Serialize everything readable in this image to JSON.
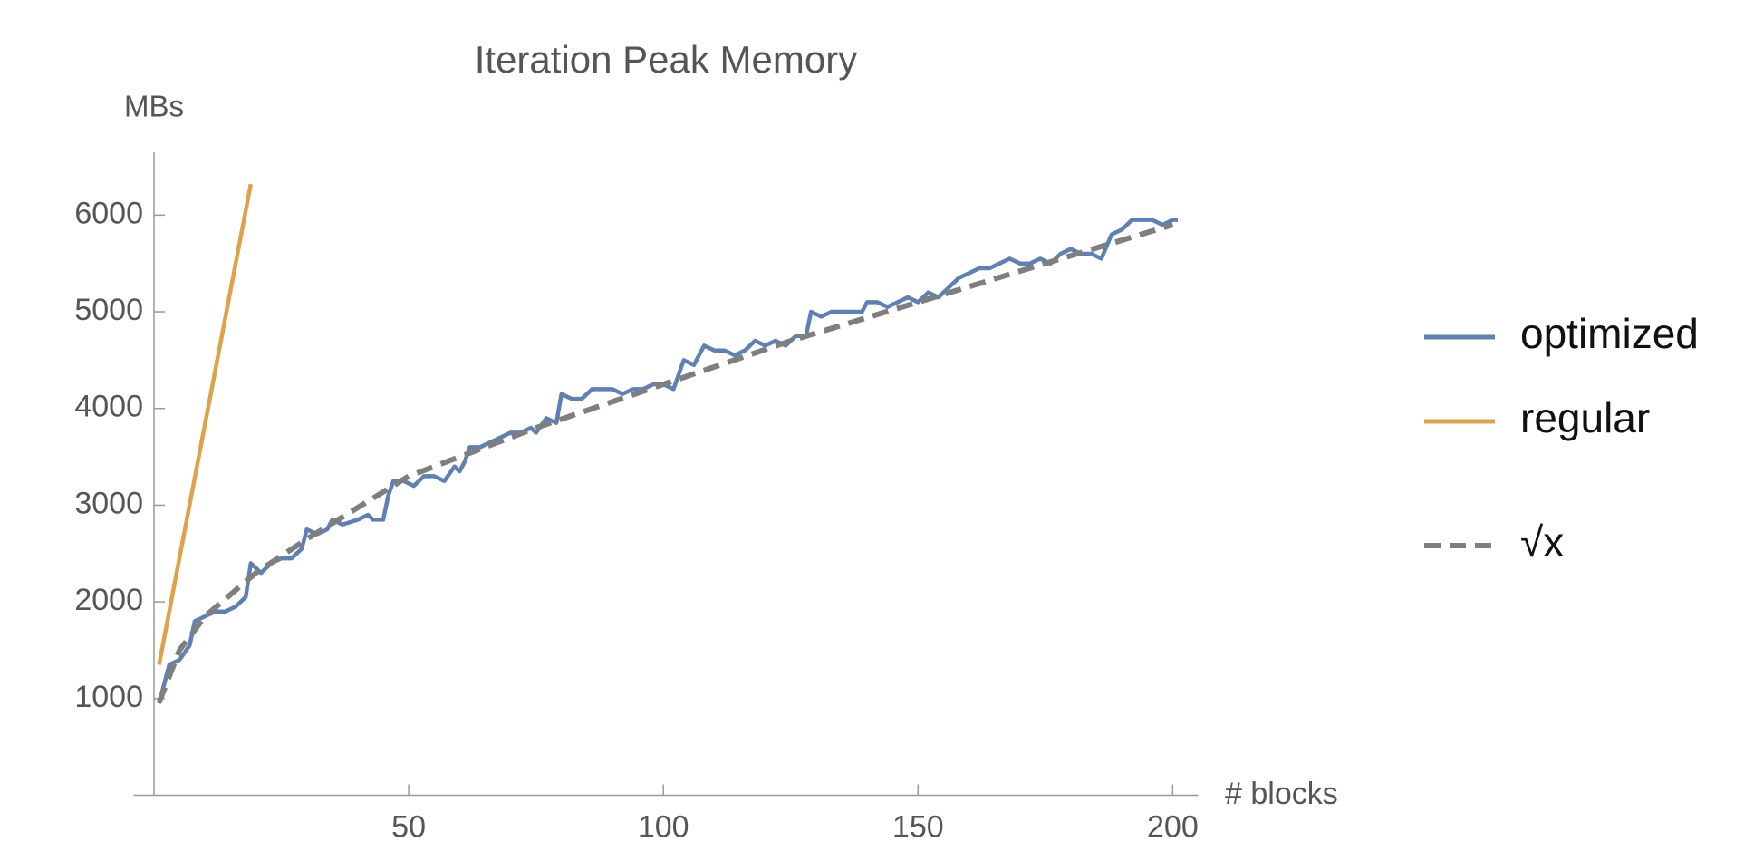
{
  "chart_data": {
    "type": "line",
    "title": "Iteration Peak Memory",
    "y_label": "MBs",
    "x_label": "# blocks",
    "xlim": [
      -4,
      205
    ],
    "ylim": [
      0,
      6650
    ],
    "xticks": [
      50,
      100,
      150,
      200
    ],
    "yticks": [
      1000,
      2000,
      3000,
      4000,
      5000,
      6000
    ],
    "legend": "right",
    "series": [
      {
        "name": "optimized",
        "color": "#5e81b5",
        "style": "solid",
        "x": [
          1,
          3,
          5,
          7,
          8,
          10,
          12,
          14,
          16,
          17,
          18,
          19,
          21,
          23,
          25,
          27,
          29,
          30,
          32,
          34,
          35,
          37,
          40,
          42,
          43,
          45,
          46,
          47,
          49,
          51,
          53,
          55,
          57,
          59,
          60,
          61,
          62,
          64,
          66,
          68,
          70,
          72,
          74,
          75,
          77,
          79,
          80,
          82,
          84,
          86,
          88,
          90,
          92,
          94,
          96,
          98,
          100,
          102,
          104,
          106,
          108,
          110,
          112,
          114,
          116,
          118,
          120,
          122,
          124,
          126,
          128,
          129,
          131,
          133,
          135,
          137,
          139,
          140,
          142,
          144,
          146,
          148,
          150,
          152,
          154,
          156,
          158,
          160,
          162,
          164,
          166,
          168,
          170,
          172,
          174,
          176,
          178,
          180,
          182,
          184,
          186,
          188,
          190,
          192,
          194,
          196,
          198,
          200,
          201
        ],
        "values": [
          950,
          1350,
          1400,
          1550,
          1800,
          1850,
          1900,
          1900,
          1950,
          2000,
          2050,
          2400,
          2300,
          2400,
          2450,
          2450,
          2550,
          2750,
          2700,
          2750,
          2850,
          2800,
          2850,
          2900,
          2850,
          2850,
          3100,
          3250,
          3250,
          3200,
          3300,
          3300,
          3250,
          3400,
          3350,
          3450,
          3600,
          3600,
          3650,
          3700,
          3750,
          3750,
          3800,
          3750,
          3900,
          3850,
          4150,
          4100,
          4100,
          4200,
          4200,
          4200,
          4150,
          4200,
          4200,
          4250,
          4250,
          4200,
          4500,
          4450,
          4650,
          4600,
          4600,
          4550,
          4600,
          4700,
          4650,
          4700,
          4650,
          4750,
          4750,
          5000,
          4950,
          5000,
          5000,
          5000,
          5000,
          5100,
          5100,
          5050,
          5100,
          5150,
          5100,
          5200,
          5150,
          5250,
          5350,
          5400,
          5450,
          5450,
          5500,
          5550,
          5500,
          5500,
          5550,
          5500,
          5600,
          5650,
          5600,
          5600,
          5550,
          5800,
          5850,
          5950,
          5950,
          5950,
          5900,
          5950,
          5950
        ]
      },
      {
        "name": "regular",
        "color": "#dda24a",
        "style": "solid",
        "x": [
          1,
          19
        ],
        "values": [
          1350,
          6320
        ]
      },
      {
        "name": "√x",
        "color": "#7f7f7f",
        "style": "dashed",
        "x": [
          1,
          5,
          10,
          20,
          30,
          50,
          75,
          100,
          125,
          150,
          175,
          200
        ],
        "values": [
          960,
          1500,
          1850,
          2300,
          2650,
          3300,
          3800,
          4250,
          4700,
          5100,
          5500,
          5900
        ]
      }
    ]
  }
}
